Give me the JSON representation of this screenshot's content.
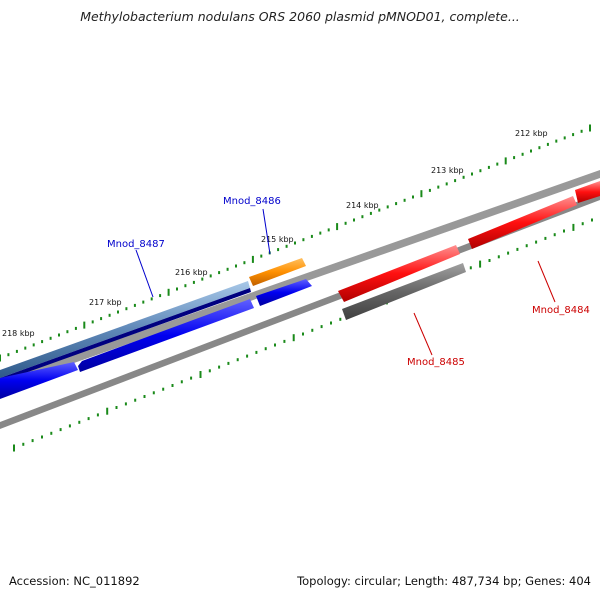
{
  "title": "Methylobacterium nodulans ORS 2060 plasmid pMNOD01, complete...",
  "footer": {
    "accession": "Accession: NC_011892",
    "summary": "Topology: circular; Length: 487,734 bp; Genes: 404"
  },
  "scale_labels": [
    "212 kbp",
    "213 kbp",
    "214 kbp",
    "215 kbp",
    "216 kbp",
    "217 kbp",
    "218 kbp"
  ],
  "gene_labels": {
    "mnod_8484": "Mnod_8484",
    "mnod_8485": "Mnod_8485",
    "mnod_8486": "Mnod_8486",
    "mnod_8487": "Mnod_8487"
  },
  "colors": {
    "forward_cds": "#ff0000",
    "reverse_cds": "#0000ee",
    "rna_gene": "#ff8c00",
    "pseudogene_grey": "#666666",
    "tick": "#1a8a1a",
    "backbone": "#808080",
    "forward_label": "#cc0000",
    "reverse_label": "#0000cc"
  }
}
